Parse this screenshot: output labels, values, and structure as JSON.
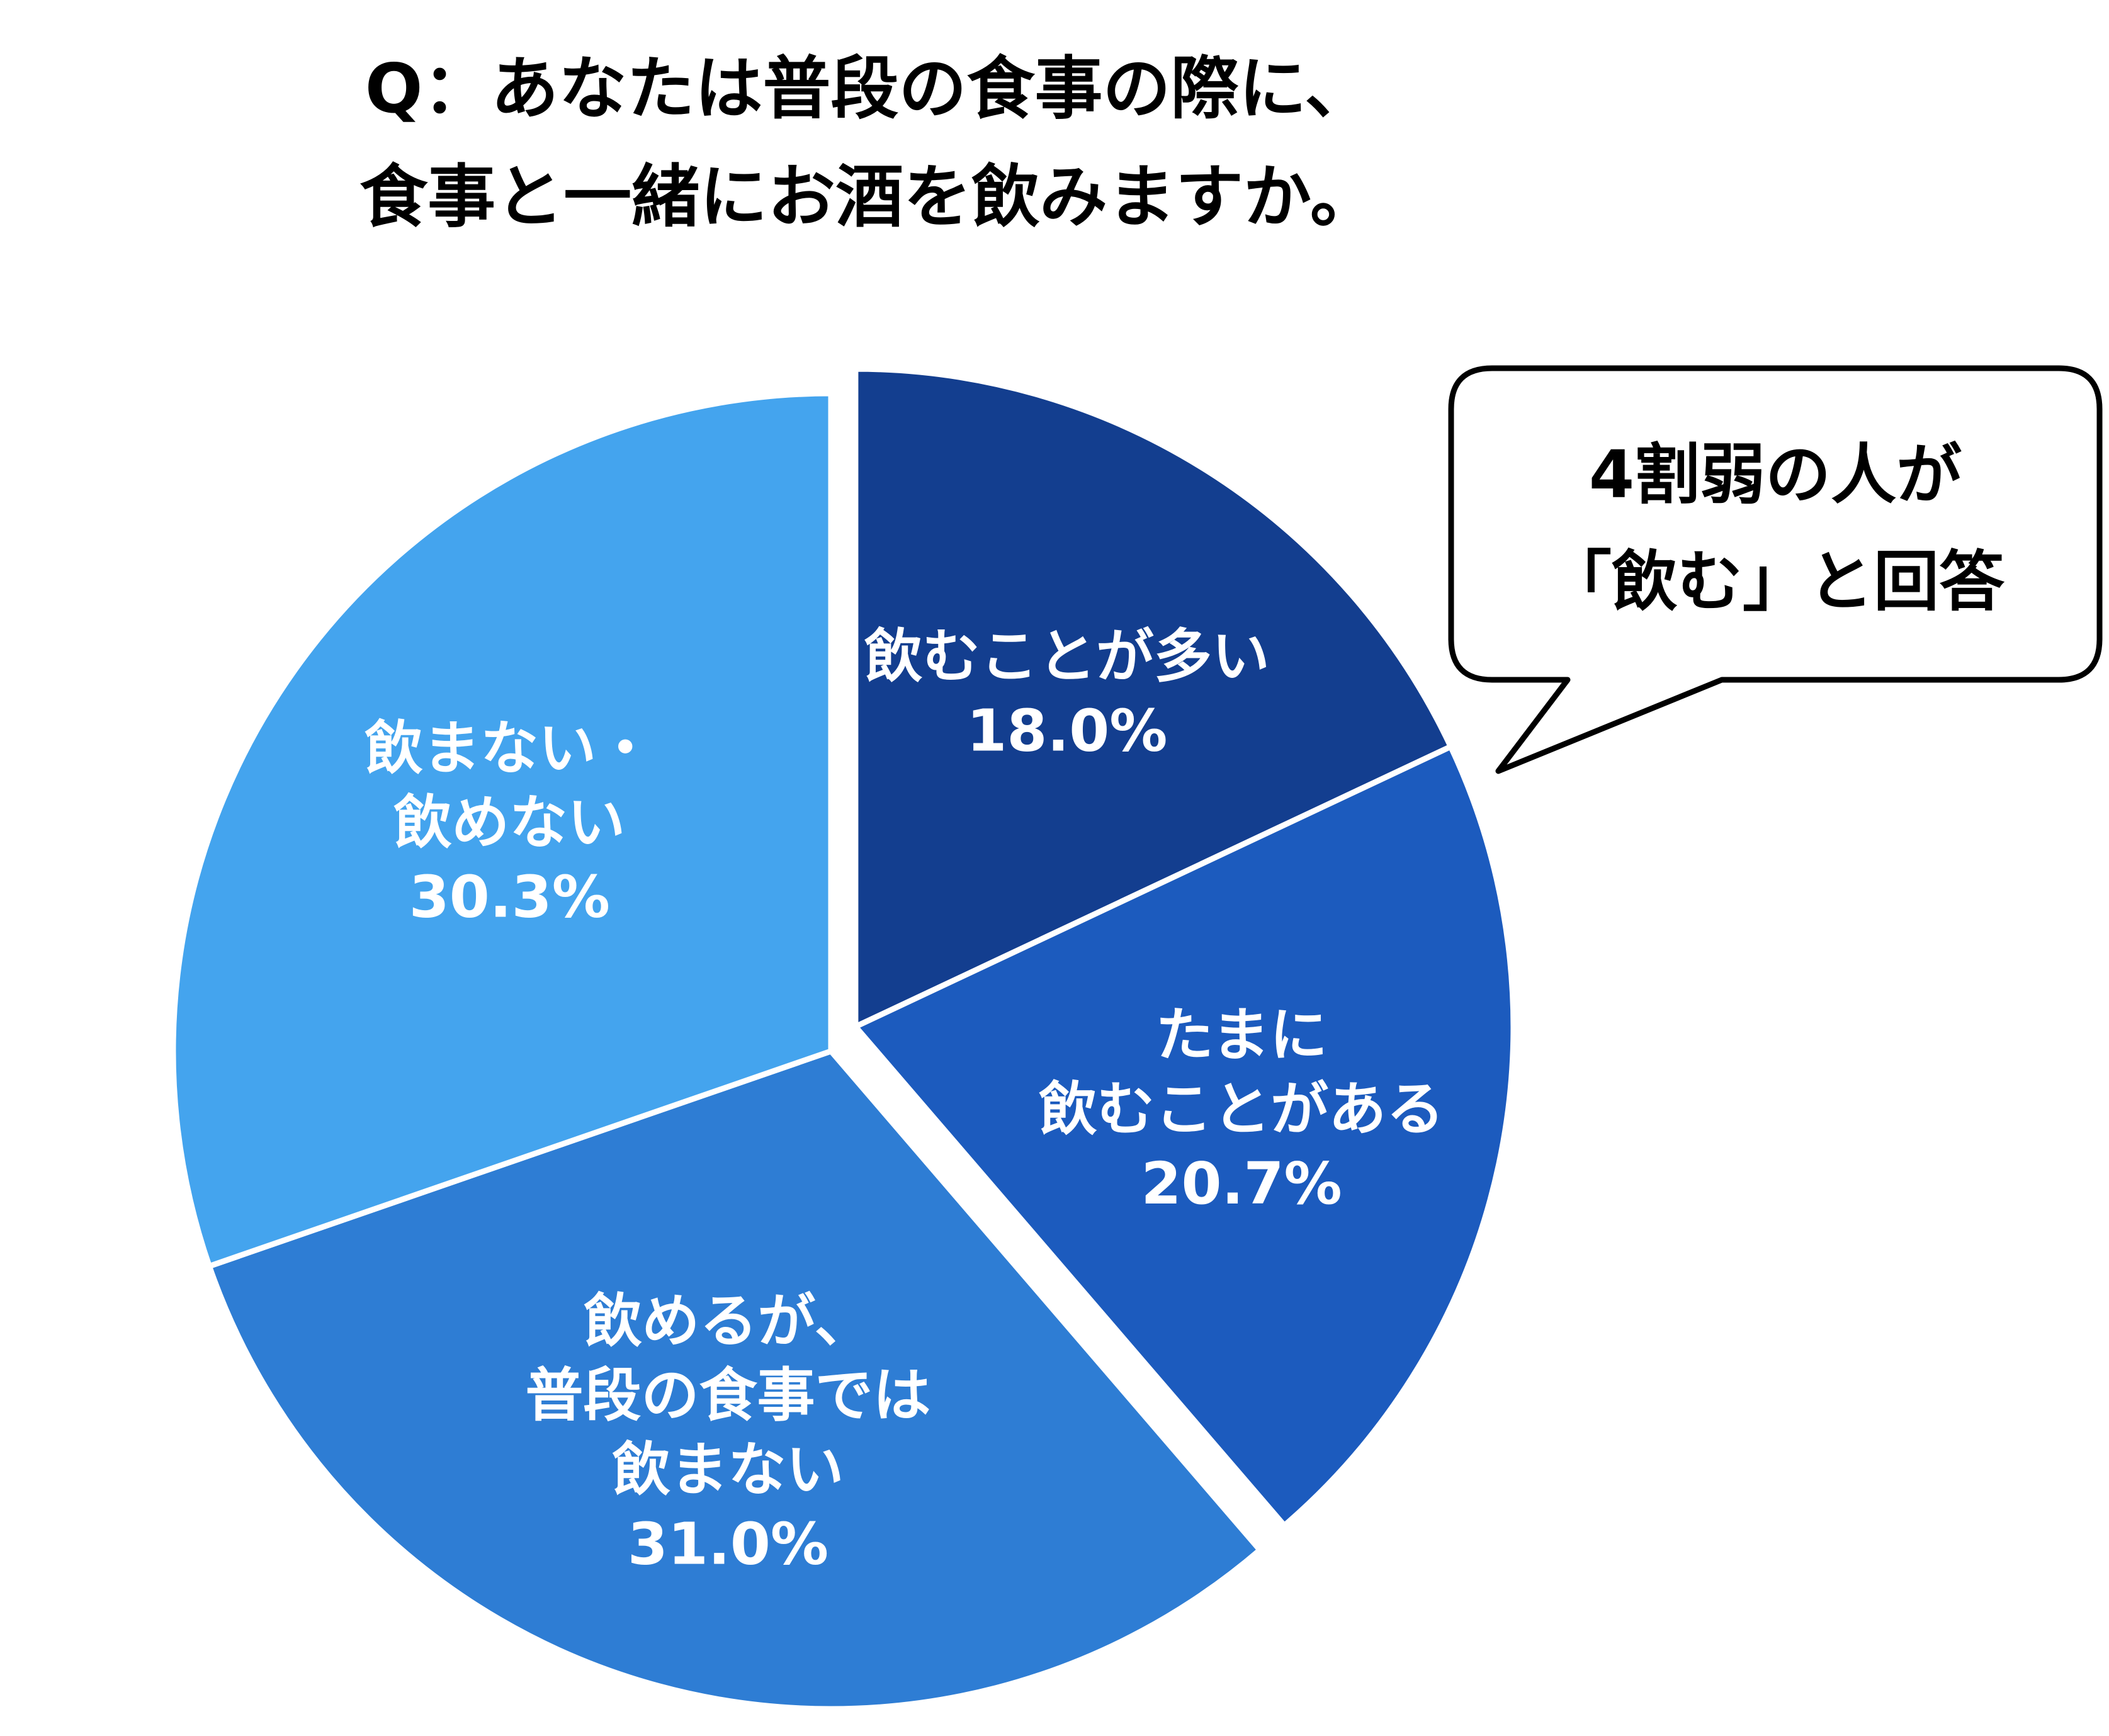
{
  "title": {
    "line1": "Q：あなたは普段の食事の際に、",
    "line2": "食事と一緒にお酒を飲みますか。"
  },
  "callout": {
    "line1": "4割弱の人が",
    "line2": "「飲む」と回答"
  },
  "chart_data": {
    "type": "pie",
    "unit": "%",
    "slices": [
      {
        "label_lines": [
          "飲むことが多い"
        ],
        "value": 18.0,
        "value_text": "18.0%",
        "color": "#133E8F",
        "exploded": true
      },
      {
        "label_lines": [
          "たまに",
          "飲むことがある"
        ],
        "value": 20.7,
        "value_text": "20.7%",
        "color": "#1C5BBE",
        "exploded": true
      },
      {
        "label_lines": [
          "飲めるが、",
          "普段の食事では",
          "飲まない"
        ],
        "value": 31.0,
        "value_text": "31.0%",
        "color": "#2E7DD4",
        "exploded": false
      },
      {
        "label_lines": [
          "飲まない・",
          "飲めない"
        ],
        "value": 30.3,
        "value_text": "30.3%",
        "color": "#44A4EE",
        "exploded": false
      }
    ]
  }
}
